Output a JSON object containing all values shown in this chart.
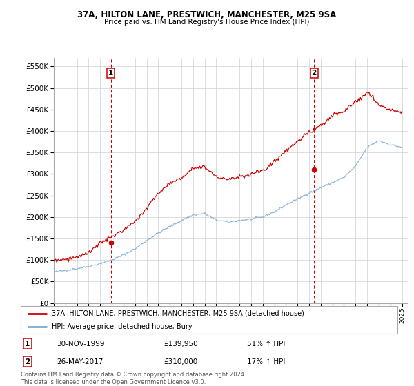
{
  "title1": "37A, HILTON LANE, PRESTWICH, MANCHESTER, M25 9SA",
  "title2": "Price paid vs. HM Land Registry's House Price Index (HPI)",
  "ylim": [
    0,
    570000
  ],
  "yticks": [
    0,
    50000,
    100000,
    150000,
    200000,
    250000,
    300000,
    350000,
    400000,
    450000,
    500000,
    550000
  ],
  "ytick_labels": [
    "£0",
    "£50K",
    "£100K",
    "£150K",
    "£200K",
    "£250K",
    "£300K",
    "£350K",
    "£400K",
    "£450K",
    "£500K",
    "£550K"
  ],
  "hpi_color": "#7aaad0",
  "price_color": "#cc0000",
  "sale1_x": 1999.917,
  "sale1_y": 139950,
  "sale2_x": 2017.42,
  "sale2_y": 310000,
  "sale1_date": "30-NOV-1999",
  "sale1_price": "£139,950",
  "sale1_hpi": "51% ↑ HPI",
  "sale2_date": "26-MAY-2017",
  "sale2_price": "£310,000",
  "sale2_hpi": "17% ↑ HPI",
  "legend_label1": "37A, HILTON LANE, PRESTWICH, MANCHESTER, M25 9SA (detached house)",
  "legend_label2": "HPI: Average price, detached house, Bury",
  "footnote": "Contains HM Land Registry data © Crown copyright and database right 2024.\nThis data is licensed under the Open Government Licence v3.0.",
  "xmin": 1995.0,
  "xmax": 2025.5,
  "xticks": [
    1995,
    1996,
    1997,
    1998,
    1999,
    2000,
    2001,
    2002,
    2003,
    2004,
    2005,
    2006,
    2007,
    2008,
    2009,
    2010,
    2011,
    2012,
    2013,
    2014,
    2015,
    2016,
    2017,
    2018,
    2019,
    2020,
    2021,
    2022,
    2023,
    2024,
    2025
  ],
  "hpi_base": [
    72000,
    76000,
    80000,
    85000,
    92000,
    100000,
    112000,
    126000,
    145000,
    163000,
    178000,
    192000,
    205000,
    208000,
    193000,
    188000,
    192000,
    195000,
    200000,
    212000,
    228000,
    242000,
    256000,
    268000,
    280000,
    292000,
    318000,
    362000,
    378000,
    368000,
    362000
  ],
  "price_base": [
    98000,
    102000,
    107000,
    115000,
    139950,
    152000,
    170000,
    190000,
    220000,
    255000,
    278000,
    292000,
    315000,
    318000,
    295000,
    288000,
    295000,
    300000,
    308000,
    330000,
    355000,
    378000,
    398000,
    415000,
    435000,
    448000,
    468000,
    490000,
    462000,
    450000,
    445000
  ]
}
